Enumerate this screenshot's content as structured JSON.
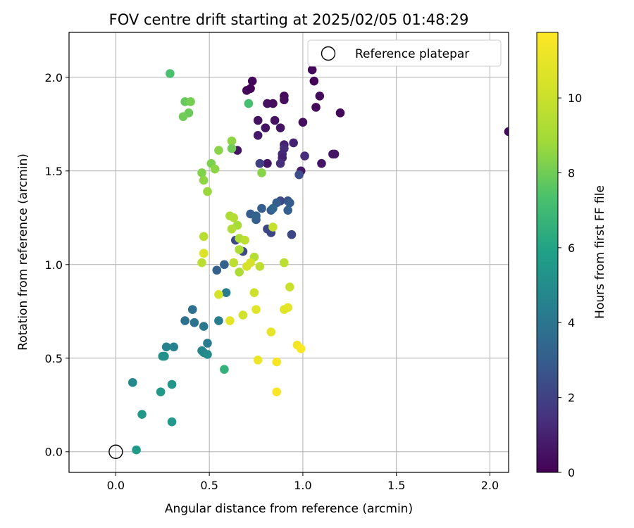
{
  "chart_data": {
    "type": "scatter",
    "title": "FOV centre drift starting at 2025/02/05 01:48:29",
    "xlabel": "Angular distance from reference (arcmin)",
    "ylabel": "Rotation from reference (arcmin)",
    "xlim": [
      -0.25,
      2.1
    ],
    "ylim": [
      -0.11,
      2.24
    ],
    "xticks": [
      "0.0",
      "0.5",
      "1.0",
      "1.5",
      "2.0"
    ],
    "yticks": [
      "0.0",
      "0.5",
      "1.0",
      "1.5",
      "2.0"
    ],
    "grid": true,
    "legend": {
      "position": "top-right",
      "entries": [
        "Reference platepar"
      ]
    },
    "reference_point": {
      "x": 0.0,
      "y": 0.0
    },
    "colorbar": {
      "label": "Hours from first FF file",
      "min": 0,
      "max": 11.75,
      "ticks": [
        "0",
        "2",
        "4",
        "6",
        "8",
        "10"
      ],
      "colormap": "viridis"
    },
    "points": [
      {
        "x": 0.7,
        "y": 1.93,
        "h": 0.2
      },
      {
        "x": 0.72,
        "y": 1.94,
        "h": 0.1
      },
      {
        "x": 0.73,
        "y": 1.98,
        "h": 0.2
      },
      {
        "x": 1.05,
        "y": 2.04,
        "h": 0.2
      },
      {
        "x": 1.06,
        "y": 1.98,
        "h": 0.1
      },
      {
        "x": 1.09,
        "y": 1.9,
        "h": 0.3
      },
      {
        "x": 0.9,
        "y": 1.9,
        "h": 0.3
      },
      {
        "x": 0.9,
        "y": 1.88,
        "h": 0.4
      },
      {
        "x": 1.07,
        "y": 1.84,
        "h": 0.2
      },
      {
        "x": 1.2,
        "y": 1.81,
        "h": 0.2
      },
      {
        "x": 0.81,
        "y": 1.86,
        "h": 0.5
      },
      {
        "x": 0.84,
        "y": 1.86,
        "h": 0.4
      },
      {
        "x": 0.76,
        "y": 1.77,
        "h": 0.5
      },
      {
        "x": 0.85,
        "y": 1.77,
        "h": 0.5
      },
      {
        "x": 0.8,
        "y": 1.73,
        "h": 0.6
      },
      {
        "x": 0.88,
        "y": 1.73,
        "h": 0.6
      },
      {
        "x": 1.0,
        "y": 1.76,
        "h": 0.4
      },
      {
        "x": 0.76,
        "y": 1.69,
        "h": 0.7
      },
      {
        "x": 0.9,
        "y": 1.64,
        "h": 1.0
      },
      {
        "x": 0.95,
        "y": 1.65,
        "h": 1.0
      },
      {
        "x": 0.9,
        "y": 1.62,
        "h": 1.3
      },
      {
        "x": 0.65,
        "y": 1.61,
        "h": 0.6
      },
      {
        "x": 0.89,
        "y": 1.59,
        "h": 1.2
      },
      {
        "x": 1.01,
        "y": 1.58,
        "h": 1.3
      },
      {
        "x": 1.16,
        "y": 1.59,
        "h": 0.6
      },
      {
        "x": 1.17,
        "y": 1.59,
        "h": 0.6
      },
      {
        "x": 0.89,
        "y": 1.57,
        "h": 1.0
      },
      {
        "x": 1.1,
        "y": 1.54,
        "h": 0.6
      },
      {
        "x": 0.81,
        "y": 1.54,
        "h": 0.6
      },
      {
        "x": 0.77,
        "y": 1.54,
        "h": 1.9
      },
      {
        "x": 0.88,
        "y": 1.54,
        "h": 1.4
      },
      {
        "x": 0.99,
        "y": 1.5,
        "h": 0.7
      },
      {
        "x": 0.98,
        "y": 1.48,
        "h": 2.4
      },
      {
        "x": 2.1,
        "y": 1.71,
        "h": 0.3
      },
      {
        "x": 0.88,
        "y": 1.34,
        "h": 2.3
      },
      {
        "x": 0.92,
        "y": 1.34,
        "h": 2.5
      },
      {
        "x": 0.93,
        "y": 1.33,
        "h": 2.9
      },
      {
        "x": 0.86,
        "y": 1.33,
        "h": 3.0
      },
      {
        "x": 0.78,
        "y": 1.3,
        "h": 3.0
      },
      {
        "x": 0.83,
        "y": 1.29,
        "h": 2.9
      },
      {
        "x": 0.84,
        "y": 1.3,
        "h": 3.3
      },
      {
        "x": 0.92,
        "y": 1.29,
        "h": 3.1
      },
      {
        "x": 0.72,
        "y": 1.27,
        "h": 3.0
      },
      {
        "x": 0.75,
        "y": 1.24,
        "h": 3.0
      },
      {
        "x": 0.75,
        "y": 1.26,
        "h": 3.2
      },
      {
        "x": 0.81,
        "y": 1.19,
        "h": 2.2
      },
      {
        "x": 0.83,
        "y": 1.17,
        "h": 2.2
      },
      {
        "x": 0.94,
        "y": 1.16,
        "h": 2.2
      },
      {
        "x": 0.64,
        "y": 1.13,
        "h": 2.2
      },
      {
        "x": 0.68,
        "y": 1.07,
        "h": 2.3
      },
      {
        "x": 0.54,
        "y": 0.97,
        "h": 3.1
      },
      {
        "x": 0.58,
        "y": 1.0,
        "h": 3.2
      },
      {
        "x": 0.59,
        "y": 0.85,
        "h": 4.3
      },
      {
        "x": 0.41,
        "y": 0.76,
        "h": 3.8
      },
      {
        "x": 0.37,
        "y": 0.7,
        "h": 3.8
      },
      {
        "x": 0.42,
        "y": 0.69,
        "h": 3.9
      },
      {
        "x": 0.47,
        "y": 0.67,
        "h": 4.1
      },
      {
        "x": 0.55,
        "y": 0.7,
        "h": 4.3
      },
      {
        "x": 0.49,
        "y": 0.58,
        "h": 4.3
      },
      {
        "x": 0.46,
        "y": 0.54,
        "h": 4.7
      },
      {
        "x": 0.47,
        "y": 0.53,
        "h": 4.7
      },
      {
        "x": 0.49,
        "y": 0.52,
        "h": 5.0
      },
      {
        "x": 0.31,
        "y": 0.56,
        "h": 4.6
      },
      {
        "x": 0.27,
        "y": 0.56,
        "h": 4.6
      },
      {
        "x": 0.26,
        "y": 0.51,
        "h": 5.2
      },
      {
        "x": 0.25,
        "y": 0.51,
        "h": 5.2
      },
      {
        "x": 0.09,
        "y": 0.37,
        "h": 4.8
      },
      {
        "x": 0.24,
        "y": 0.32,
        "h": 5.5
      },
      {
        "x": 0.3,
        "y": 0.36,
        "h": 5.4
      },
      {
        "x": 0.14,
        "y": 0.2,
        "h": 5.5
      },
      {
        "x": 0.3,
        "y": 0.16,
        "h": 5.5
      },
      {
        "x": 0.11,
        "y": 0.01,
        "h": 5.6
      },
      {
        "x": 0.58,
        "y": 0.44,
        "h": 6.6
      },
      {
        "x": 0.29,
        "y": 2.02,
        "h": 7.3
      },
      {
        "x": 0.71,
        "y": 1.86,
        "h": 7.2
      },
      {
        "x": 0.37,
        "y": 1.87,
        "h": 7.8
      },
      {
        "x": 0.4,
        "y": 1.87,
        "h": 8.1
      },
      {
        "x": 0.39,
        "y": 1.81,
        "h": 7.9
      },
      {
        "x": 0.36,
        "y": 1.79,
        "h": 8.0
      },
      {
        "x": 0.62,
        "y": 1.66,
        "h": 8.5
      },
      {
        "x": 0.62,
        "y": 1.62,
        "h": 8.0
      },
      {
        "x": 0.55,
        "y": 1.61,
        "h": 8.4
      },
      {
        "x": 0.51,
        "y": 1.54,
        "h": 8.2
      },
      {
        "x": 0.53,
        "y": 1.51,
        "h": 8.5
      },
      {
        "x": 0.46,
        "y": 1.49,
        "h": 8.3
      },
      {
        "x": 0.78,
        "y": 1.49,
        "h": 8.4
      },
      {
        "x": 0.47,
        "y": 1.45,
        "h": 8.5
      },
      {
        "x": 0.49,
        "y": 1.39,
        "h": 8.7
      },
      {
        "x": 0.61,
        "y": 1.26,
        "h": 9.1
      },
      {
        "x": 0.63,
        "y": 1.25,
        "h": 9.4
      },
      {
        "x": 0.65,
        "y": 1.21,
        "h": 9.0
      },
      {
        "x": 0.62,
        "y": 1.19,
        "h": 9.3
      },
      {
        "x": 0.84,
        "y": 1.2,
        "h": 9.9
      },
      {
        "x": 0.47,
        "y": 1.15,
        "h": 9.5
      },
      {
        "x": 0.66,
        "y": 1.14,
        "h": 9.1
      },
      {
        "x": 0.69,
        "y": 1.13,
        "h": 9.6
      },
      {
        "x": 0.47,
        "y": 1.06,
        "h": 10.5
      },
      {
        "x": 0.47,
        "y": 1.06,
        "h": 10.6
      },
      {
        "x": 0.66,
        "y": 1.08,
        "h": 9.2
      },
      {
        "x": 0.74,
        "y": 1.04,
        "h": 9.4
      },
      {
        "x": 0.63,
        "y": 1.01,
        "h": 9.6
      },
      {
        "x": 0.46,
        "y": 1.01,
        "h": 9.6
      },
      {
        "x": 0.72,
        "y": 1.01,
        "h": 10.4
      },
      {
        "x": 0.7,
        "y": 0.99,
        "h": 10.4
      },
      {
        "x": 0.77,
        "y": 0.99,
        "h": 9.7
      },
      {
        "x": 0.66,
        "y": 0.96,
        "h": 9.2
      },
      {
        "x": 0.9,
        "y": 1.01,
        "h": 9.6
      },
      {
        "x": 0.74,
        "y": 0.85,
        "h": 10.1
      },
      {
        "x": 0.93,
        "y": 0.88,
        "h": 10.0
      },
      {
        "x": 0.55,
        "y": 0.84,
        "h": 10.3
      },
      {
        "x": 0.75,
        "y": 0.76,
        "h": 10.8
      },
      {
        "x": 0.92,
        "y": 0.77,
        "h": 10.9
      },
      {
        "x": 0.9,
        "y": 0.76,
        "h": 10.8
      },
      {
        "x": 0.68,
        "y": 0.73,
        "h": 10.2
      },
      {
        "x": 0.61,
        "y": 0.7,
        "h": 10.8
      },
      {
        "x": 0.83,
        "y": 0.64,
        "h": 11.0
      },
      {
        "x": 0.97,
        "y": 0.57,
        "h": 11.4
      },
      {
        "x": 0.99,
        "y": 0.55,
        "h": 11.7
      },
      {
        "x": 0.76,
        "y": 0.49,
        "h": 11.2
      },
      {
        "x": 0.86,
        "y": 0.48,
        "h": 11.5
      },
      {
        "x": 0.86,
        "y": 0.32,
        "h": 11.6
      }
    ]
  }
}
